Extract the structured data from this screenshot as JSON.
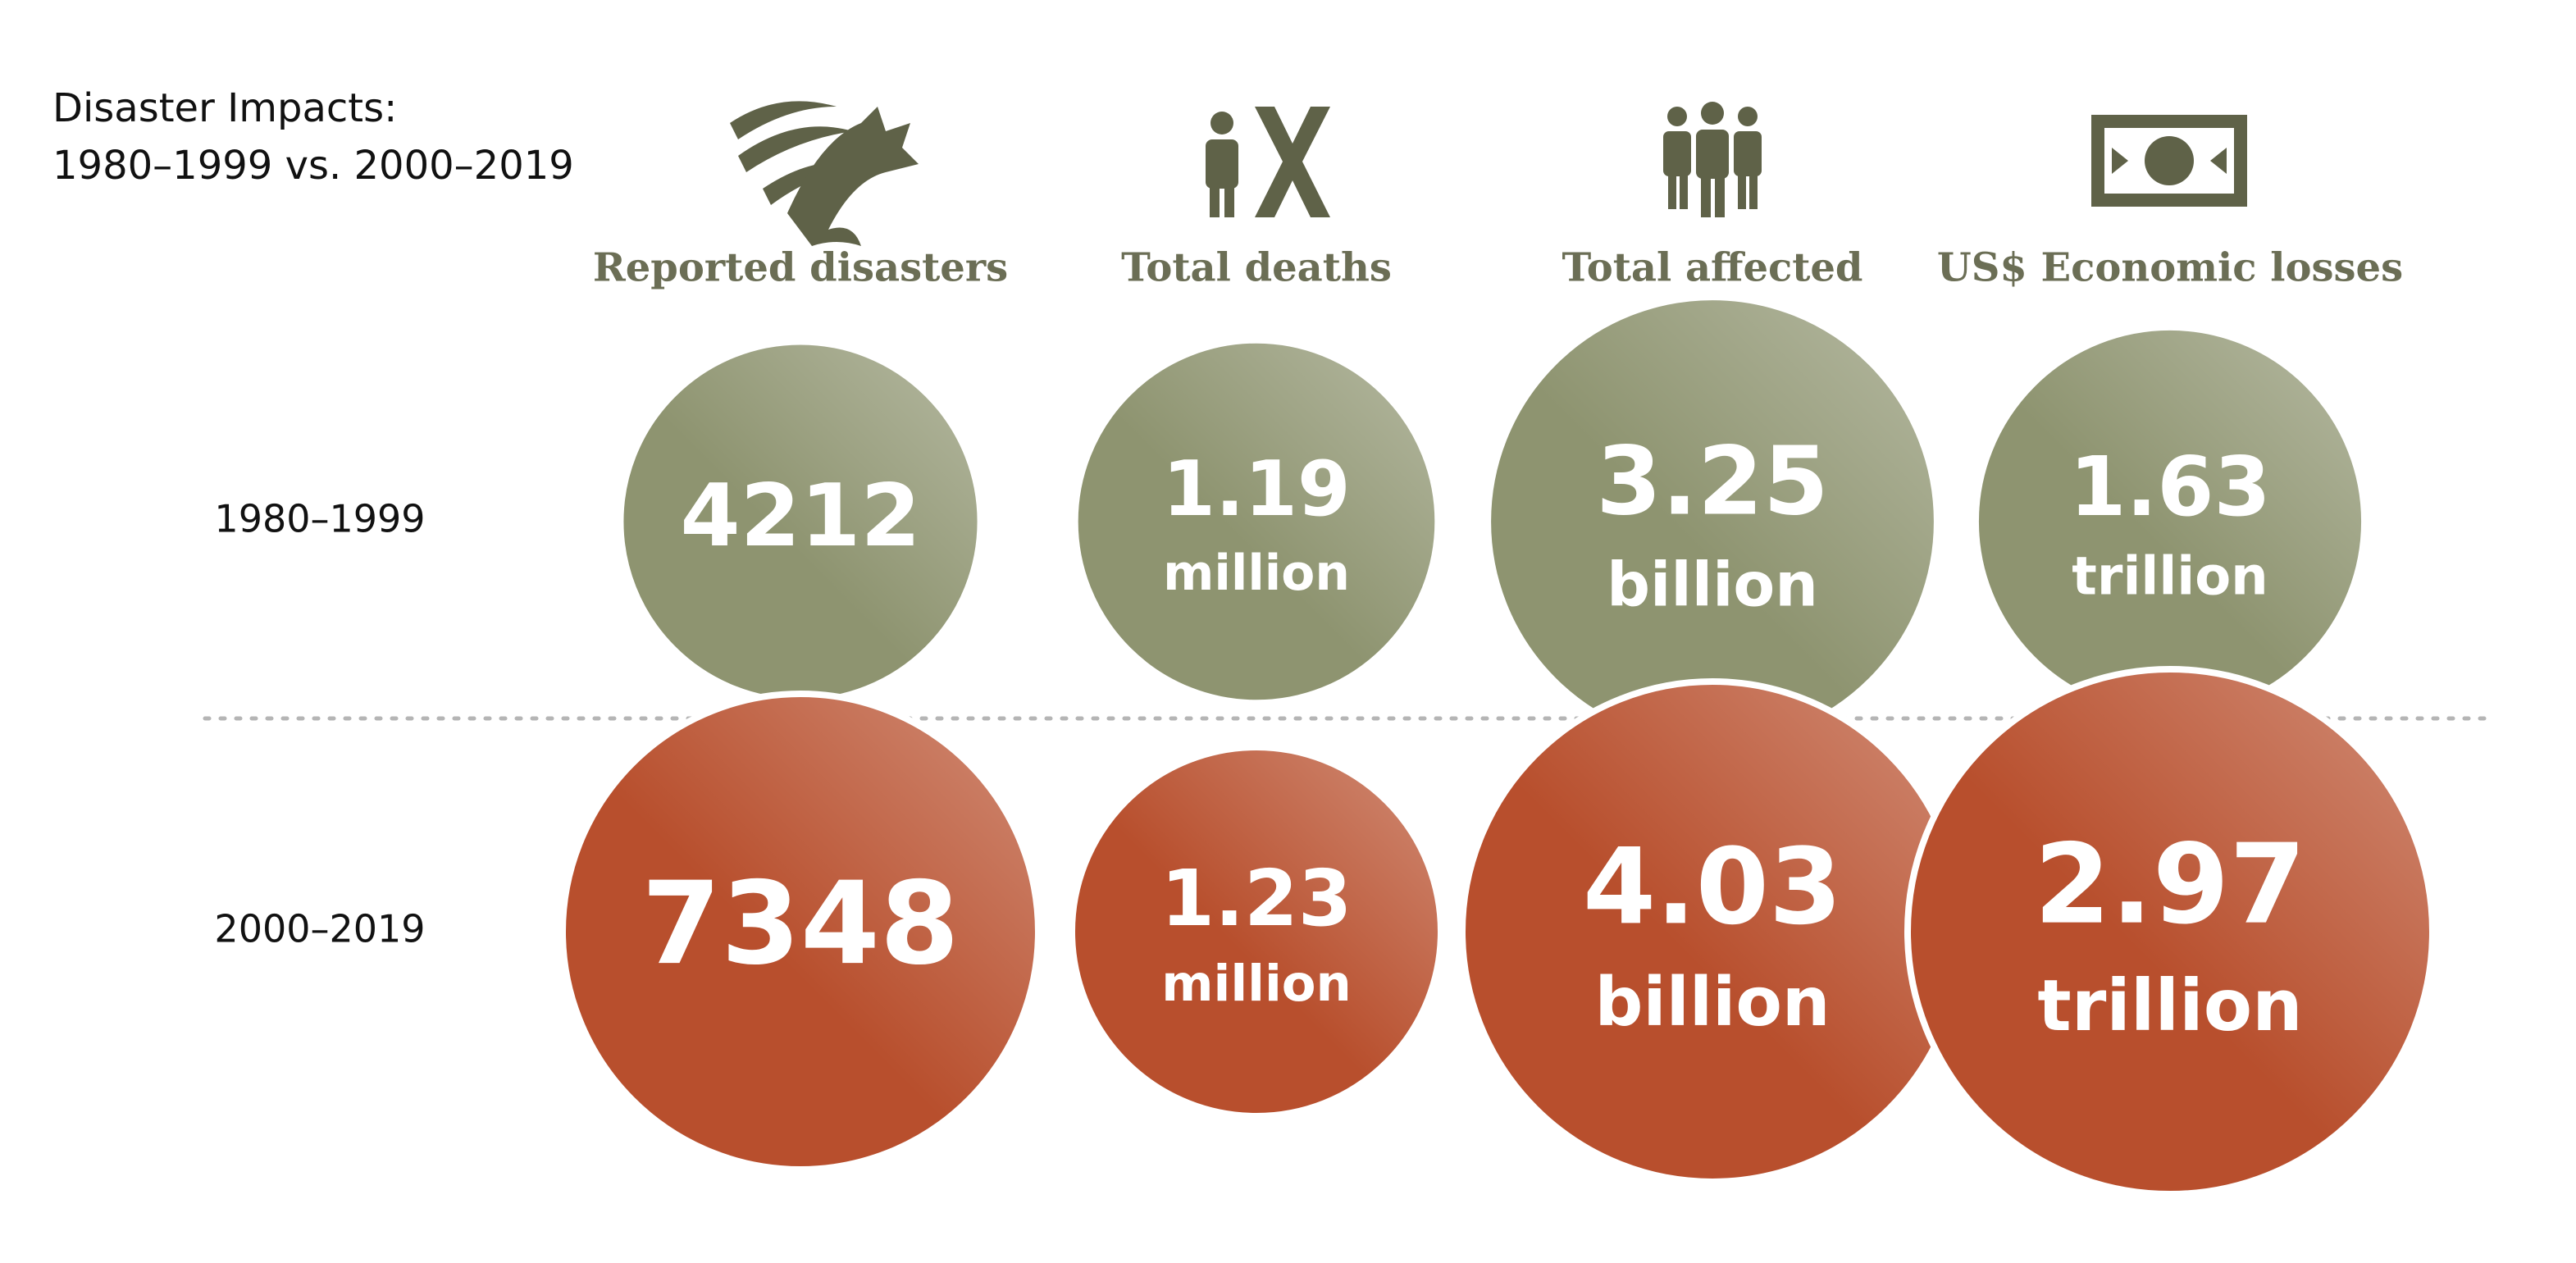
{
  "title": "Disaster Impacts:",
  "subtitle": "1980–1999 vs. 2000–2019",
  "periods": [
    "1980–1999",
    "2000–2019"
  ],
  "colors": [
    "#8e9470",
    "#b84f2d"
  ],
  "metrics": [
    {
      "label": "Reported disasters",
      "values": [
        4212,
        7348
      ]
    },
    {
      "label": "Total deaths",
      "values": [
        1.19,
        1.23
      ],
      "unit": "million"
    },
    {
      "label": "Total affected",
      "values": [
        3.25,
        4.03
      ],
      "unit": "billion"
    },
    {
      "label": "US$ Economic losses",
      "values": [
        1.63,
        2.97
      ],
      "unit": "trillion"
    }
  ]
}
